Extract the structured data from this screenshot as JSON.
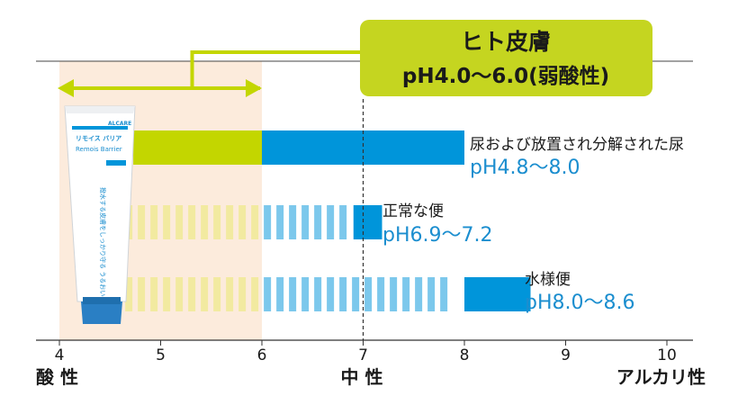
{
  "chart_data": {
    "type": "bar",
    "x_axis": {
      "ticks": [
        4,
        5,
        6,
        7,
        8,
        9,
        10
      ],
      "range": [
        4,
        10
      ],
      "end_labels": {
        "left": "酸 性",
        "center": "中 性",
        "right": "アルカリ性"
      }
    },
    "skin_range": {
      "title": "ヒト皮膚",
      "range_label": "pH4.0〜6.0(弱酸性)",
      "from": 4.0,
      "to": 6.0
    },
    "neutral_line": 7.0,
    "series": [
      {
        "name": "尿および放置され分解された尿",
        "range_label": "pH4.8〜8.0",
        "from": 4.8,
        "to": 8.0,
        "style": "solid"
      },
      {
        "name": "正常な便",
        "range_label": "pH6.9〜7.2",
        "from": 6.9,
        "to": 7.2,
        "style": "dashed"
      },
      {
        "name": "水様便",
        "range_label": "pH8.0〜8.6",
        "from": 8.0,
        "to": 8.6,
        "style": "dashed"
      }
    ],
    "colors": {
      "skin_band": "#fcebdc",
      "yellow_green": "#c3d600",
      "blue": "#0095da",
      "callout_bg": "#c5d520"
    }
  },
  "product": {
    "brand": "ALCARE",
    "name": "リモイス バリア",
    "name_en": "Remois Barrier",
    "tagline": "撥水する皮膚をしっかり守る うるおいのバリア"
  }
}
